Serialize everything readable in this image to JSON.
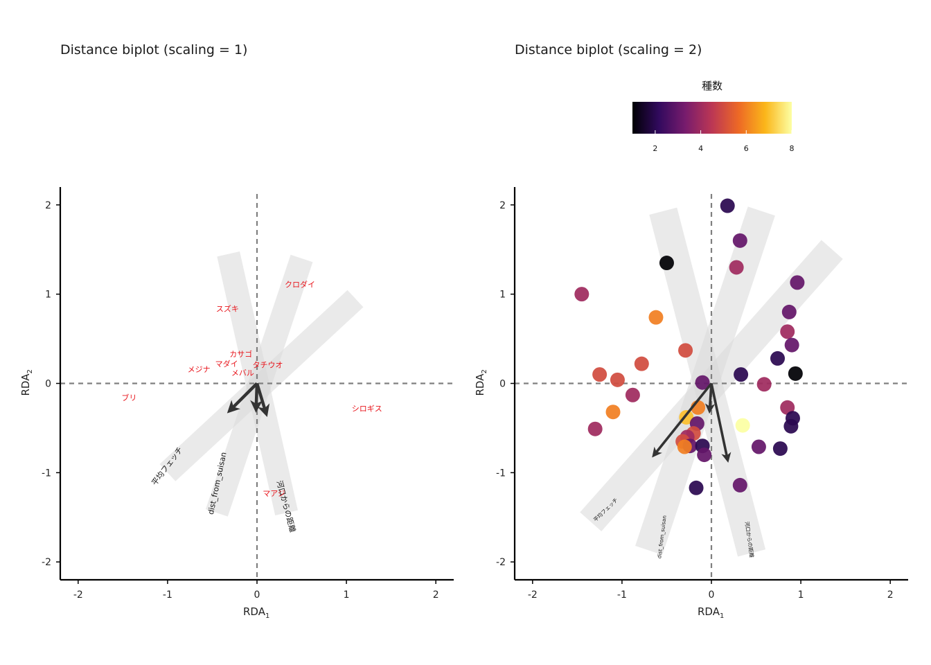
{
  "chart_data": [
    {
      "type": "scatter",
      "title": "Distance biplot (scaling = 1)",
      "xlabel": "RDA",
      "xlabel_sub": "1",
      "ylabel": "RDA",
      "ylabel_sub": "2",
      "xlim": [
        -2.2,
        2.2
      ],
      "ylim": [
        -2.2,
        2.2
      ],
      "xticks": [
        -2,
        -1,
        0,
        1,
        2
      ],
      "yticks": [
        -2,
        -1,
        0,
        1,
        2
      ],
      "species": [
        {
          "label": "クロダイ",
          "x": 0.48,
          "y": 1.11
        },
        {
          "label": "スズキ",
          "x": -0.33,
          "y": 0.84
        },
        {
          "label": "カサゴ",
          "x": -0.18,
          "y": 0.33
        },
        {
          "label": "マダイ",
          "x": -0.34,
          "y": 0.22
        },
        {
          "label": "タチウオ",
          "x": 0.12,
          "y": 0.21
        },
        {
          "label": "メジナ",
          "x": -0.65,
          "y": 0.16
        },
        {
          "label": "メバル",
          "x": -0.16,
          "y": 0.12
        },
        {
          "label": "ブリ",
          "x": -1.43,
          "y": -0.16
        },
        {
          "label": "シロギス",
          "x": 1.23,
          "y": -0.28
        },
        {
          "label": "マアジ",
          "x": 0.19,
          "y": -1.23
        }
      ],
      "arrows": [
        {
          "x": -0.3,
          "y": -0.3
        },
        {
          "x": 0.1,
          "y": -0.33
        },
        {
          "x": -0.01,
          "y": -0.28
        }
      ],
      "arrow_labels": [
        {
          "label": "平均フェッチ",
          "x": -1.0,
          "y": -0.93,
          "angle": -53
        },
        {
          "label": "dist_from_suisan",
          "x": -0.44,
          "y": -1.12,
          "angle": -78
        },
        {
          "label": "河口からの距離",
          "x": 0.32,
          "y": -1.38,
          "angle": 75
        }
      ],
      "bands": [
        {
          "from": [
            -1.0,
            -1.0
          ],
          "to": [
            1.1,
            0.95
          ],
          "halfwidth": 0.13
        },
        {
          "from": [
            -0.45,
            -1.45
          ],
          "to": [
            0.5,
            1.4
          ],
          "halfwidth": 0.13
        },
        {
          "from": [
            0.33,
            -1.45
          ],
          "to": [
            -0.32,
            1.45
          ],
          "halfwidth": 0.13
        }
      ]
    },
    {
      "type": "scatter",
      "title": "Distance biplot (scaling = 2)",
      "xlabel": "RDA",
      "xlabel_sub": "1",
      "ylabel": "RDA",
      "ylabel_sub": "2",
      "xlim": [
        -2.2,
        2.2
      ],
      "ylim": [
        -2.2,
        2.2
      ],
      "xticks": [
        -2,
        -1,
        0,
        1,
        2
      ],
      "yticks": [
        -2,
        -1,
        0,
        1,
        2
      ],
      "legend": {
        "title": "種数",
        "min": 1,
        "max": 8,
        "ticks": [
          2,
          4,
          6,
          8
        ],
        "palette": [
          "#000004",
          "#320a5e",
          "#781c6d",
          "#bc3754",
          "#ed6925",
          "#fbb61a",
          "#fcffa4"
        ]
      },
      "points": [
        {
          "x": 0.18,
          "y": 1.99,
          "n": 2
        },
        {
          "x": 0.32,
          "y": 1.6,
          "n": 3
        },
        {
          "x": -0.5,
          "y": 1.35,
          "n": 1
        },
        {
          "x": 0.28,
          "y": 1.3,
          "n": 4
        },
        {
          "x": 0.96,
          "y": 1.13,
          "n": 3
        },
        {
          "x": -1.45,
          "y": 1.0,
          "n": 4
        },
        {
          "x": 0.87,
          "y": 0.8,
          "n": 3
        },
        {
          "x": -0.62,
          "y": 0.74,
          "n": 6
        },
        {
          "x": 0.85,
          "y": 0.58,
          "n": 4
        },
        {
          "x": 0.9,
          "y": 0.43,
          "n": 3
        },
        {
          "x": -0.29,
          "y": 0.37,
          "n": 5
        },
        {
          "x": 0.74,
          "y": 0.28,
          "n": 2
        },
        {
          "x": -0.78,
          "y": 0.22,
          "n": 5
        },
        {
          "x": 0.94,
          "y": 0.11,
          "n": 1
        },
        {
          "x": 0.33,
          "y": 0.1,
          "n": 2
        },
        {
          "x": -1.25,
          "y": 0.1,
          "n": 5
        },
        {
          "x": -1.05,
          "y": 0.04,
          "n": 5
        },
        {
          "x": -0.1,
          "y": 0.01,
          "n": 3
        },
        {
          "x": 0.59,
          "y": -0.01,
          "n": 4
        },
        {
          "x": -0.88,
          "y": -0.13,
          "n": 4
        },
        {
          "x": 0.85,
          "y": -0.27,
          "n": 4
        },
        {
          "x": -0.15,
          "y": -0.27,
          "n": 6
        },
        {
          "x": -1.1,
          "y": -0.32,
          "n": 6
        },
        {
          "x": -0.28,
          "y": -0.38,
          "n": 7
        },
        {
          "x": 0.91,
          "y": -0.39,
          "n": 2
        },
        {
          "x": -0.16,
          "y": -0.45,
          "n": 3
        },
        {
          "x": 0.35,
          "y": -0.47,
          "n": 8
        },
        {
          "x": 0.89,
          "y": -0.48,
          "n": 2
        },
        {
          "x": -1.3,
          "y": -0.51,
          "n": 4
        },
        {
          "x": -0.2,
          "y": -0.56,
          "n": 5
        },
        {
          "x": -0.27,
          "y": -0.6,
          "n": 4
        },
        {
          "x": -0.32,
          "y": -0.65,
          "n": 5
        },
        {
          "x": -0.24,
          "y": -0.7,
          "n": 3
        },
        {
          "x": -0.1,
          "y": -0.7,
          "n": 2
        },
        {
          "x": 0.53,
          "y": -0.71,
          "n": 3
        },
        {
          "x": -0.3,
          "y": -0.71,
          "n": 6
        },
        {
          "x": 0.77,
          "y": -0.73,
          "n": 2
        },
        {
          "x": -0.08,
          "y": -0.8,
          "n": 3
        },
        {
          "x": 0.32,
          "y": -1.14,
          "n": 3
        },
        {
          "x": -0.17,
          "y": -1.17,
          "n": 2
        }
      ],
      "arrows": [
        {
          "x": -0.64,
          "y": -0.8
        },
        {
          "x": 0.18,
          "y": -0.85
        },
        {
          "x": -0.02,
          "y": -0.3
        }
      ],
      "arrow_labels": [
        {
          "label": "平均フェッチ",
          "x": -1.18,
          "y": -1.42,
          "angle": -44
        },
        {
          "label": "dist_from_suisan",
          "x": -0.55,
          "y": -1.72,
          "angle": -83
        },
        {
          "label": "河口からの距離",
          "x": 0.42,
          "y": -1.75,
          "angle": 82
        }
      ],
      "bands": [
        {
          "from": [
            -1.35,
            -1.55
          ],
          "to": [
            1.35,
            1.5
          ],
          "halfwidth": 0.16
        },
        {
          "from": [
            -0.7,
            -1.87
          ],
          "to": [
            0.56,
            1.93
          ],
          "halfwidth": 0.16
        },
        {
          "from": [
            0.45,
            -1.9
          ],
          "to": [
            -0.54,
            1.93
          ],
          "halfwidth": 0.16
        }
      ]
    }
  ]
}
